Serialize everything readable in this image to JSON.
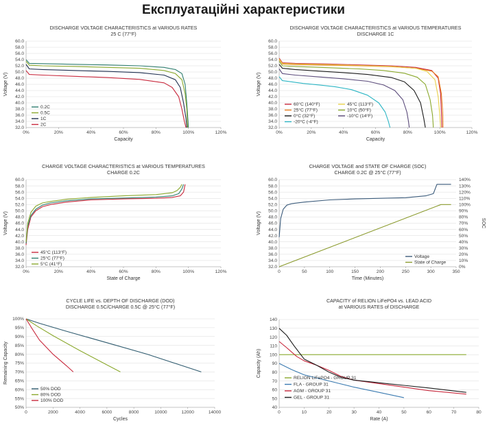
{
  "page_title": "Експлуатаційні характеристики",
  "chart_data": [
    {
      "type": "line",
      "title": "DISCHARGE VOLTAGE CHARACTERISTICS at VARIOUS RATES",
      "subtitle": "25 C (77°F)",
      "xlabel": "Capacity",
      "ylabel": "Voltage (V)",
      "xlim": [
        0,
        120
      ],
      "ylim": [
        32,
        60
      ],
      "xticks": [
        0,
        20,
        40,
        60,
        80,
        100,
        120
      ],
      "xtick_labels": [
        "0%",
        "20%",
        "40%",
        "60%",
        "80%",
        "100%",
        "120%"
      ],
      "yticks": [
        32,
        34,
        36,
        38,
        40,
        42,
        44,
        46,
        48,
        50,
        52,
        54,
        56,
        58,
        60
      ],
      "ytick_labels": [
        "32.0",
        "34.0",
        "36.0",
        "38.0",
        "40.0",
        "42.0",
        "44.0",
        "46.0",
        "48.0",
        "50.0",
        "52.0",
        "54.0",
        "56.0",
        "58.0",
        "60.0"
      ],
      "legend_position": "bottom-left",
      "series": [
        {
          "name": "0.2C",
          "color": "#2e7d6e",
          "x": [
            0,
            2,
            10,
            30,
            50,
            70,
            85,
            92,
            96,
            98,
            99,
            100
          ],
          "y": [
            54.0,
            52.8,
            52.7,
            52.5,
            52.3,
            52.0,
            51.5,
            50.8,
            49.5,
            46.0,
            40.0,
            32.0
          ]
        },
        {
          "name": "0.5C",
          "color": "#8aa82c",
          "x": [
            0,
            2,
            10,
            30,
            50,
            70,
            85,
            92,
            96,
            98,
            99,
            99.5
          ],
          "y": [
            53.5,
            52.2,
            52.0,
            51.8,
            51.5,
            51.2,
            50.5,
            49.5,
            47.5,
            43.0,
            38.0,
            32.0
          ]
        },
        {
          "name": "1C",
          "color": "#1f2f4f",
          "x": [
            0,
            2,
            10,
            30,
            50,
            70,
            85,
            92,
            95,
            97,
            98.5,
            99
          ],
          "y": [
            52.5,
            51.0,
            50.8,
            50.5,
            50.2,
            49.8,
            49.0,
            47.5,
            45.0,
            40.0,
            35.0,
            32.0
          ]
        },
        {
          "name": "2C",
          "color": "#c8283c",
          "x": [
            0,
            2,
            10,
            30,
            50,
            70,
            85,
            90,
            94,
            96,
            97.5,
            98.5
          ],
          "y": [
            50.5,
            49.2,
            49.0,
            48.6,
            48.2,
            47.6,
            46.5,
            45.0,
            42.0,
            38.0,
            34.0,
            32.0
          ]
        }
      ]
    },
    {
      "type": "line",
      "title": "DISCHARGE VOLTAGE CHARACTERISTICS at VARIOUS TEMPERATURES",
      "subtitle": "DISCHARGE 1C",
      "xlabel": "Capacity",
      "ylabel": "Voltage (V)",
      "xlim": [
        0,
        120
      ],
      "ylim": [
        32,
        60
      ],
      "xticks": [
        0,
        20,
        40,
        60,
        80,
        100,
        120
      ],
      "xtick_labels": [
        "0%",
        "20%",
        "40%",
        "60%",
        "80%",
        "100%",
        "120%"
      ],
      "yticks": [
        32,
        34,
        36,
        38,
        40,
        42,
        44,
        46,
        48,
        50,
        52,
        54,
        56,
        58,
        60
      ],
      "ytick_labels": [
        "32.0",
        "34.0",
        "36.0",
        "38.0",
        "40.0",
        "42.0",
        "44.0",
        "46.0",
        "48.0",
        "50.0",
        "52.0",
        "54.0",
        "56.0",
        "58.0",
        "60.0"
      ],
      "legend_position": "bottom-left",
      "series": [
        {
          "name": "60°C  (140°F)",
          "color": "#c8283c",
          "x": [
            0,
            2,
            10,
            30,
            50,
            70,
            85,
            95,
            99,
            100.5,
            101,
            101.3
          ],
          "y": [
            54.5,
            53.0,
            52.8,
            52.6,
            52.3,
            52.0,
            51.5,
            50.5,
            48.0,
            43.0,
            37.0,
            32.0
          ]
        },
        {
          "name": "25°C  (77°F)",
          "color": "#e87d1e",
          "x": [
            0,
            2,
            10,
            30,
            50,
            70,
            85,
            95,
            99,
            101,
            101.8,
            102
          ],
          "y": [
            54.0,
            52.6,
            52.4,
            52.2,
            52.0,
            51.7,
            51.2,
            50.3,
            48.5,
            43.0,
            37.0,
            32.0
          ]
        },
        {
          "name": "0°C  (32°F)",
          "color": "#1a1a1a",
          "x": [
            0,
            2,
            10,
            25,
            40,
            55,
            70,
            78,
            84,
            88,
            90,
            91
          ],
          "y": [
            52.5,
            51.2,
            50.8,
            50.3,
            49.8,
            49.2,
            48.2,
            46.8,
            44.0,
            40.0,
            35.0,
            32.0
          ]
        },
        {
          "name": "-20°C  (-4°F)",
          "color": "#2bb5c4",
          "x": [
            0,
            2,
            8,
            15,
            25,
            35,
            45,
            55,
            62,
            66,
            68,
            69
          ],
          "y": [
            48.5,
            47.2,
            46.8,
            46.3,
            45.8,
            45.2,
            44.3,
            42.5,
            40.0,
            37.0,
            34.0,
            32.0
          ]
        },
        {
          "name": "45°C  (113°F)",
          "color": "#e9d24a",
          "x": [
            0,
            2,
            10,
            30,
            50,
            70,
            85,
            92,
            97,
            99,
            100,
            100.5
          ],
          "y": [
            54.2,
            52.8,
            52.6,
            52.4,
            52.1,
            51.8,
            51.2,
            50.2,
            47.5,
            42.0,
            36.0,
            32.0
          ]
        },
        {
          "name": "10°C  (50°F)",
          "color": "#8aa82c",
          "x": [
            0,
            2,
            10,
            30,
            50,
            65,
            78,
            86,
            91,
            94,
            95.5,
            96
          ],
          "y": [
            53.5,
            52.0,
            51.8,
            51.4,
            51.0,
            50.5,
            49.6,
            48.3,
            46.0,
            41.0,
            36.0,
            32.0
          ]
        },
        {
          "name": "-10°C  (14°F)",
          "color": "#5a4a7a",
          "x": [
            0,
            2,
            10,
            25,
            40,
            55,
            65,
            72,
            77,
            79.5,
            80.5,
            81
          ],
          "y": [
            51.0,
            49.5,
            49.0,
            48.4,
            47.8,
            47.0,
            45.8,
            44.0,
            41.0,
            37.0,
            34.0,
            32.0
          ]
        }
      ]
    },
    {
      "type": "line",
      "title": "CHARGE VOLTAGE CHARACTERISTICS at VARIOUS TEMPERATURES",
      "subtitle": "CHARGE 0.2C",
      "xlabel": "State of Charge",
      "ylabel": "Voltage (V)",
      "xlim": [
        0,
        120
      ],
      "ylim": [
        32,
        60
      ],
      "xticks": [
        0,
        20,
        40,
        60,
        80,
        100,
        120
      ],
      "xtick_labels": [
        "0%",
        "20%",
        "40%",
        "60%",
        "80%",
        "100%",
        "120%"
      ],
      "yticks": [
        32,
        34,
        36,
        38,
        40,
        42,
        44,
        46,
        48,
        50,
        52,
        54,
        56,
        58,
        60
      ],
      "ytick_labels": [
        "32.0",
        "34.0",
        "36.0",
        "38.0",
        "40.0",
        "42.0",
        "44.0",
        "46.0",
        "48.0",
        "50.0",
        "52.0",
        "54.0",
        "56.0",
        "58.0",
        "60.0"
      ],
      "legend_position": "bottom-left",
      "series": [
        {
          "name": "45°C  (113°F)",
          "color": "#c8283c",
          "x": [
            0,
            1,
            3,
            6,
            10,
            15,
            25,
            40,
            60,
            80,
            90,
            95,
            97,
            98
          ],
          "y": [
            39.0,
            44.0,
            48.0,
            50.0,
            51.3,
            52.0,
            52.8,
            53.5,
            53.8,
            54.0,
            54.3,
            54.8,
            56.0,
            58.5
          ]
        },
        {
          "name": "25°C  (77°F)",
          "color": "#2e7d6e",
          "x": [
            0,
            1,
            3,
            6,
            10,
            15,
            25,
            40,
            60,
            80,
            90,
            94,
            96,
            97
          ],
          "y": [
            39.5,
            45.0,
            48.5,
            50.5,
            51.8,
            52.5,
            53.2,
            53.8,
            54.1,
            54.4,
            54.8,
            55.5,
            57.0,
            58.5
          ]
        },
        {
          "name": "5°C  (41°F)",
          "color": "#8aa82c",
          "x": [
            0,
            1,
            3,
            6,
            10,
            15,
            25,
            40,
            60,
            80,
            90,
            93,
            95,
            96
          ],
          "y": [
            40.0,
            46.0,
            49.5,
            51.5,
            52.5,
            53.0,
            53.7,
            54.3,
            54.8,
            55.2,
            55.8,
            56.5,
            57.5,
            58.5
          ]
        }
      ]
    },
    {
      "type": "line",
      "title": "CHARGE VOLTAGE and STATE OF CHARGE (SOC)",
      "subtitle": "CHARGE 0.2C @ 25°C (77°F)",
      "xlabel": "Time (Minutes)",
      "ylabel": "Voltage (V)",
      "y2label": "SOC",
      "xlim": [
        0,
        350
      ],
      "ylim": [
        32,
        60
      ],
      "y2lim": [
        0,
        140
      ],
      "xticks": [
        0,
        50,
        100,
        150,
        200,
        250,
        300,
        350
      ],
      "xtick_labels": [
        "0",
        "50",
        "100",
        "150",
        "200",
        "250",
        "300",
        "350"
      ],
      "yticks": [
        32,
        34,
        36,
        38,
        40,
        42,
        44,
        46,
        48,
        50,
        52,
        54,
        56,
        58,
        60
      ],
      "ytick_labels": [
        "32.0",
        "34.0",
        "36.0",
        "38.0",
        "40.0",
        "42.0",
        "44.0",
        "46.0",
        "48.0",
        "50.0",
        "52.0",
        "54.0",
        "56.0",
        "58.0",
        "60.0"
      ],
      "y2ticks": [
        0,
        10,
        20,
        30,
        40,
        50,
        60,
        70,
        80,
        90,
        100,
        110,
        120,
        130,
        140
      ],
      "y2tick_labels": [
        "0%",
        "10%",
        "20%",
        "30%",
        "40%",
        "50%",
        "60%",
        "70%",
        "80%",
        "90%",
        "100%",
        "110%",
        "120%",
        "130%",
        "140%"
      ],
      "legend_position": "bottom-right",
      "series": [
        {
          "name": "Voltage",
          "axis": "y",
          "color": "#3a5a7a",
          "x": [
            0,
            3,
            8,
            15,
            25,
            50,
            100,
            150,
            200,
            250,
            290,
            305,
            312,
            320,
            340
          ],
          "y": [
            41.5,
            47.5,
            50.5,
            51.8,
            52.3,
            52.8,
            53.5,
            53.8,
            54.0,
            54.2,
            54.8,
            55.5,
            58.5,
            58.5,
            58.5
          ]
        },
        {
          "name": "State of Charge",
          "axis": "y2",
          "color": "#8a9a2c",
          "x": [
            0,
            320,
            340
          ],
          "y": [
            0,
            100,
            100
          ]
        }
      ]
    },
    {
      "type": "line",
      "title": "CYCLE LIFE vs. DEPTH OF DISCHARGE (DOD)",
      "subtitle": "DISCHARGE 0.5C/CHARGE 0.5C @ 25°C (77°F)",
      "xlabel": "Cycles",
      "ylabel": "Remaining Capacity",
      "xlim": [
        0,
        14000
      ],
      "ylim": [
        50,
        100
      ],
      "xticks": [
        0,
        2000,
        4000,
        6000,
        8000,
        10000,
        12000,
        14000
      ],
      "xtick_labels": [
        "0",
        "2000",
        "4000",
        "6000",
        "8000",
        "10000",
        "12000",
        "14000"
      ],
      "yticks": [
        50,
        55,
        60,
        65,
        70,
        75,
        80,
        85,
        90,
        95,
        100
      ],
      "ytick_labels": [
        "50%",
        "55%",
        "60%",
        "65%",
        "70%",
        "75%",
        "80%",
        "85%",
        "90%",
        "95%",
        "100%"
      ],
      "legend_position": "bottom-left",
      "series": [
        {
          "name": "50% DOD",
          "color": "#2e5a6e",
          "x": [
            0,
            1000,
            3000,
            6000,
            9000,
            13000
          ],
          "y": [
            100,
            97.5,
            93.0,
            86.5,
            80.0,
            70.0
          ]
        },
        {
          "name": "80% DOD",
          "color": "#8aa82c",
          "x": [
            0,
            800,
            2000,
            4000,
            6000,
            7000
          ],
          "y": [
            100,
            96.0,
            90.5,
            82.0,
            74.0,
            70.0
          ]
        },
        {
          "name": "100% DOD",
          "color": "#c8283c",
          "x": [
            0,
            400,
            1000,
            2000,
            3000,
            3500
          ],
          "y": [
            100,
            95.0,
            88.0,
            80.0,
            73.5,
            70.0
          ]
        }
      ]
    },
    {
      "type": "line",
      "title": "CAPACITY of RELION LiFePO4 vs. LEAD ACID",
      "subtitle": "at VARIOUS RATES of DISCHARGE",
      "xlabel": "Rate (A)",
      "ylabel": "Capacity (Ah)",
      "xlim": [
        0,
        80
      ],
      "ylim": [
        40,
        140
      ],
      "xticks": [
        0,
        10,
        20,
        30,
        40,
        50,
        60,
        70,
        80
      ],
      "xtick_labels": [
        "0",
        "10",
        "20",
        "30",
        "40",
        "50",
        "60",
        "70",
        "80"
      ],
      "yticks": [
        40,
        50,
        60,
        70,
        80,
        90,
        100,
        110,
        120,
        130,
        140
      ],
      "ytick_labels": [
        "40",
        "50",
        "60",
        "70",
        "80",
        "90",
        "100",
        "110",
        "120",
        "130",
        "140"
      ],
      "legend_position": "bottom-left",
      "series": [
        {
          "name": "RELION LiFePO4 - GROUP 31",
          "color": "#8aa82c",
          "x": [
            0,
            75
          ],
          "y": [
            100,
            100
          ]
        },
        {
          "name": "FLA - GROUP 31",
          "color": "#3a7ab0",
          "x": [
            0,
            5,
            10,
            20,
            30,
            40,
            50
          ],
          "y": [
            90,
            83,
            77,
            70,
            63,
            57,
            51
          ]
        },
        {
          "name": "AGM - GROUP 31",
          "color": "#c8283c",
          "x": [
            0,
            3,
            7,
            10,
            15,
            20,
            25,
            30,
            40,
            50,
            60,
            75
          ],
          "y": [
            115,
            108,
            98,
            93,
            88,
            82,
            75,
            71,
            67,
            63,
            59,
            55
          ]
        },
        {
          "name": "GEL - GROUP 31",
          "color": "#1a1a1a",
          "x": [
            0,
            3,
            6,
            10,
            15,
            20,
            25,
            30,
            40,
            50,
            60,
            75
          ],
          "y": [
            130,
            122,
            110,
            95,
            88,
            80,
            74,
            71,
            68,
            65,
            62,
            57
          ]
        }
      ]
    }
  ]
}
